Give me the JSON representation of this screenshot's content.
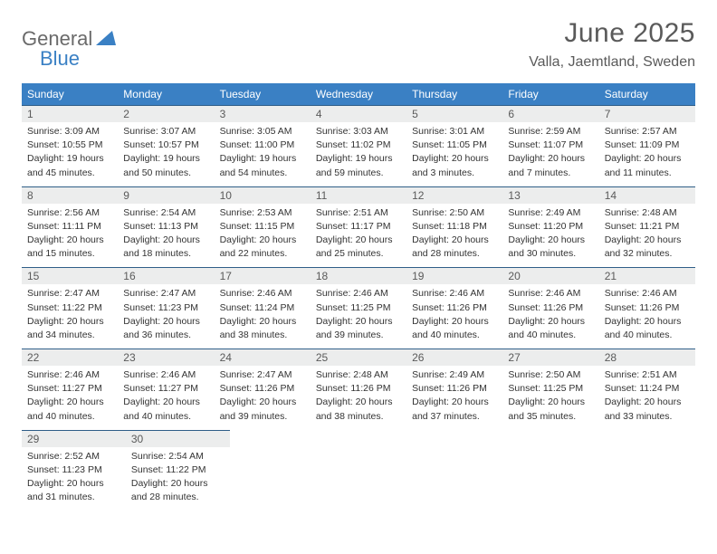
{
  "logo": {
    "text1": "General",
    "text2": "Blue"
  },
  "header": {
    "month": "June 2025",
    "location": "Valla, Jaemtland, Sweden"
  },
  "colors": {
    "accent": "#3a80c4",
    "dayHeaderBg": "#eceded",
    "dayBorder": "#2f5e88",
    "text": "#333333",
    "muted": "#5a5a5a"
  },
  "weekdays": [
    "Sunday",
    "Monday",
    "Tuesday",
    "Wednesday",
    "Thursday",
    "Friday",
    "Saturday"
  ],
  "weeks": [
    [
      {
        "n": "1",
        "sr": "Sunrise: 3:09 AM",
        "ss": "Sunset: 10:55 PM",
        "d1": "Daylight: 19 hours",
        "d2": "and 45 minutes."
      },
      {
        "n": "2",
        "sr": "Sunrise: 3:07 AM",
        "ss": "Sunset: 10:57 PM",
        "d1": "Daylight: 19 hours",
        "d2": "and 50 minutes."
      },
      {
        "n": "3",
        "sr": "Sunrise: 3:05 AM",
        "ss": "Sunset: 11:00 PM",
        "d1": "Daylight: 19 hours",
        "d2": "and 54 minutes."
      },
      {
        "n": "4",
        "sr": "Sunrise: 3:03 AM",
        "ss": "Sunset: 11:02 PM",
        "d1": "Daylight: 19 hours",
        "d2": "and 59 minutes."
      },
      {
        "n": "5",
        "sr": "Sunrise: 3:01 AM",
        "ss": "Sunset: 11:05 PM",
        "d1": "Daylight: 20 hours",
        "d2": "and 3 minutes."
      },
      {
        "n": "6",
        "sr": "Sunrise: 2:59 AM",
        "ss": "Sunset: 11:07 PM",
        "d1": "Daylight: 20 hours",
        "d2": "and 7 minutes."
      },
      {
        "n": "7",
        "sr": "Sunrise: 2:57 AM",
        "ss": "Sunset: 11:09 PM",
        "d1": "Daylight: 20 hours",
        "d2": "and 11 minutes."
      }
    ],
    [
      {
        "n": "8",
        "sr": "Sunrise: 2:56 AM",
        "ss": "Sunset: 11:11 PM",
        "d1": "Daylight: 20 hours",
        "d2": "and 15 minutes."
      },
      {
        "n": "9",
        "sr": "Sunrise: 2:54 AM",
        "ss": "Sunset: 11:13 PM",
        "d1": "Daylight: 20 hours",
        "d2": "and 18 minutes."
      },
      {
        "n": "10",
        "sr": "Sunrise: 2:53 AM",
        "ss": "Sunset: 11:15 PM",
        "d1": "Daylight: 20 hours",
        "d2": "and 22 minutes."
      },
      {
        "n": "11",
        "sr": "Sunrise: 2:51 AM",
        "ss": "Sunset: 11:17 PM",
        "d1": "Daylight: 20 hours",
        "d2": "and 25 minutes."
      },
      {
        "n": "12",
        "sr": "Sunrise: 2:50 AM",
        "ss": "Sunset: 11:18 PM",
        "d1": "Daylight: 20 hours",
        "d2": "and 28 minutes."
      },
      {
        "n": "13",
        "sr": "Sunrise: 2:49 AM",
        "ss": "Sunset: 11:20 PM",
        "d1": "Daylight: 20 hours",
        "d2": "and 30 minutes."
      },
      {
        "n": "14",
        "sr": "Sunrise: 2:48 AM",
        "ss": "Sunset: 11:21 PM",
        "d1": "Daylight: 20 hours",
        "d2": "and 32 minutes."
      }
    ],
    [
      {
        "n": "15",
        "sr": "Sunrise: 2:47 AM",
        "ss": "Sunset: 11:22 PM",
        "d1": "Daylight: 20 hours",
        "d2": "and 34 minutes."
      },
      {
        "n": "16",
        "sr": "Sunrise: 2:47 AM",
        "ss": "Sunset: 11:23 PM",
        "d1": "Daylight: 20 hours",
        "d2": "and 36 minutes."
      },
      {
        "n": "17",
        "sr": "Sunrise: 2:46 AM",
        "ss": "Sunset: 11:24 PM",
        "d1": "Daylight: 20 hours",
        "d2": "and 38 minutes."
      },
      {
        "n": "18",
        "sr": "Sunrise: 2:46 AM",
        "ss": "Sunset: 11:25 PM",
        "d1": "Daylight: 20 hours",
        "d2": "and 39 minutes."
      },
      {
        "n": "19",
        "sr": "Sunrise: 2:46 AM",
        "ss": "Sunset: 11:26 PM",
        "d1": "Daylight: 20 hours",
        "d2": "and 40 minutes."
      },
      {
        "n": "20",
        "sr": "Sunrise: 2:46 AM",
        "ss": "Sunset: 11:26 PM",
        "d1": "Daylight: 20 hours",
        "d2": "and 40 minutes."
      },
      {
        "n": "21",
        "sr": "Sunrise: 2:46 AM",
        "ss": "Sunset: 11:26 PM",
        "d1": "Daylight: 20 hours",
        "d2": "and 40 minutes."
      }
    ],
    [
      {
        "n": "22",
        "sr": "Sunrise: 2:46 AM",
        "ss": "Sunset: 11:27 PM",
        "d1": "Daylight: 20 hours",
        "d2": "and 40 minutes."
      },
      {
        "n": "23",
        "sr": "Sunrise: 2:46 AM",
        "ss": "Sunset: 11:27 PM",
        "d1": "Daylight: 20 hours",
        "d2": "and 40 minutes."
      },
      {
        "n": "24",
        "sr": "Sunrise: 2:47 AM",
        "ss": "Sunset: 11:26 PM",
        "d1": "Daylight: 20 hours",
        "d2": "and 39 minutes."
      },
      {
        "n": "25",
        "sr": "Sunrise: 2:48 AM",
        "ss": "Sunset: 11:26 PM",
        "d1": "Daylight: 20 hours",
        "d2": "and 38 minutes."
      },
      {
        "n": "26",
        "sr": "Sunrise: 2:49 AM",
        "ss": "Sunset: 11:26 PM",
        "d1": "Daylight: 20 hours",
        "d2": "and 37 minutes."
      },
      {
        "n": "27",
        "sr": "Sunrise: 2:50 AM",
        "ss": "Sunset: 11:25 PM",
        "d1": "Daylight: 20 hours",
        "d2": "and 35 minutes."
      },
      {
        "n": "28",
        "sr": "Sunrise: 2:51 AM",
        "ss": "Sunset: 11:24 PM",
        "d1": "Daylight: 20 hours",
        "d2": "and 33 minutes."
      }
    ],
    [
      {
        "n": "29",
        "sr": "Sunrise: 2:52 AM",
        "ss": "Sunset: 11:23 PM",
        "d1": "Daylight: 20 hours",
        "d2": "and 31 minutes."
      },
      {
        "n": "30",
        "sr": "Sunrise: 2:54 AM",
        "ss": "Sunset: 11:22 PM",
        "d1": "Daylight: 20 hours",
        "d2": "and 28 minutes."
      },
      null,
      null,
      null,
      null,
      null
    ]
  ]
}
